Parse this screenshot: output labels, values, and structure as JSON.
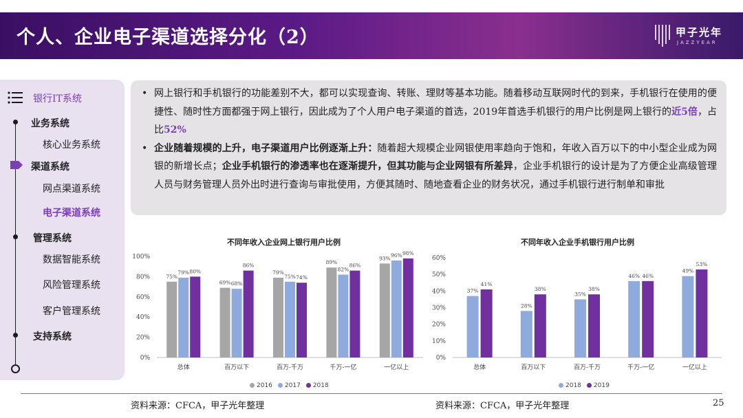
{
  "header": {
    "title": "个人、企业电子渠道选择分化（2）",
    "logo_name": "甲子光年",
    "logo_sub": "JAZZYEAR"
  },
  "sidebar": {
    "top_label": "银行IT系统",
    "items": [
      {
        "label": "业务系统",
        "level": "head"
      },
      {
        "label": "核心业务系统",
        "level": "sub"
      },
      {
        "label": "渠道系统",
        "level": "head"
      },
      {
        "label": "网点渠道系统",
        "level": "sub"
      },
      {
        "label": "电子渠道系统",
        "level": "sub-active"
      },
      {
        "label": "管理系统",
        "level": "head"
      },
      {
        "label": "数据智能系统",
        "level": "sub"
      },
      {
        "label": "风险管理系统",
        "level": "sub"
      },
      {
        "label": "客户管理系统",
        "level": "sub"
      },
      {
        "label": "支持系统",
        "level": "head"
      }
    ]
  },
  "text": {
    "p1_a": "网上银行和手机银行的功能差别不大，都可以实现查询、转账、理财等基本功能。随着移动互联网时代的到来，手机银行在使用的便捷性、随时性方面都强于网上银行，因此成为了个人用户电子渠道的首选，2019年首选手机银行的用户比例是网上银行的",
    "p1_hl1": "近5倍",
    "p1_b": "，占比",
    "p1_hl2": "52%",
    "p2_bold1": "企业随着规模的上升，电子渠道用户比例逐渐上升：",
    "p2_a": "随着超大规模企业网银使用率趋向于饱和，年收入百万以下的中小型企业成为网银的新增长点；",
    "p2_bold2": "企业手机银行的渗透率也在逐渐提升，但其功能与企业网银有所差异",
    "p2_b": "，企业手机银行的设计是为了方便企业高级管理人员与财务管理人员外出时进行查询与审批使用，方便其随时、随地查看企业的财务状况，通过手机银行进行制单和审批",
    "bullet": "•"
  },
  "chart_data": [
    {
      "type": "bar",
      "title": "不同年收入企业网上银行用户比例",
      "categories": [
        "总体",
        "百万以下",
        "百万-千万",
        "千万-一亿",
        "一亿以上"
      ],
      "ylim": [
        0,
        100
      ],
      "yticks": [
        "0%",
        "20%",
        "40%",
        "60%",
        "80%",
        "100%"
      ],
      "series": [
        {
          "name": "2016",
          "values": [
            75,
            69,
            79,
            89,
            93
          ],
          "labels": [
            "75%",
            "69%",
            "79%",
            "89%",
            "93%"
          ],
          "color": "#a6a6a6"
        },
        {
          "name": "2017",
          "values": [
            79,
            68,
            75,
            82,
            96
          ],
          "labels": [
            "79%",
            "68%",
            "75%",
            "82%",
            "96%"
          ],
          "color": "#8faadc"
        },
        {
          "name": "2018",
          "values": [
            80,
            86,
            74,
            86,
            98
          ],
          "labels": [
            "80%",
            "86%",
            "74%",
            "86%",
            "98%"
          ],
          "color": "#7030a0"
        }
      ],
      "legend_position": "bottom"
    },
    {
      "type": "bar",
      "title": "不同年收入企业手机银行用户比例",
      "categories": [
        "总体",
        "百万以下",
        "百万-千万",
        "千万-一亿",
        "一亿以上"
      ],
      "ylim": [
        0,
        60
      ],
      "yticks": [
        "0%",
        "10%",
        "20%",
        "30%",
        "40%",
        "50%",
        "60%"
      ],
      "series": [
        {
          "name": "2018",
          "values": [
            37,
            28,
            35,
            46,
            49
          ],
          "labels": [
            "37%",
            "28%",
            "35%",
            "46%",
            "49%"
          ],
          "color": "#8faadc"
        },
        {
          "name": "2019",
          "values": [
            41,
            38,
            38,
            46,
            53
          ],
          "labels": [
            "41%",
            "38%",
            "38%",
            "46%",
            "53%"
          ],
          "color": "#7030a0"
        }
      ],
      "legend_position": "bottom"
    }
  ],
  "footer": {
    "source_left": "资料来源：CFCA，甲子光年整理",
    "source_right": "资料来源：CFCA，甲子光年整理",
    "page": "25"
  }
}
